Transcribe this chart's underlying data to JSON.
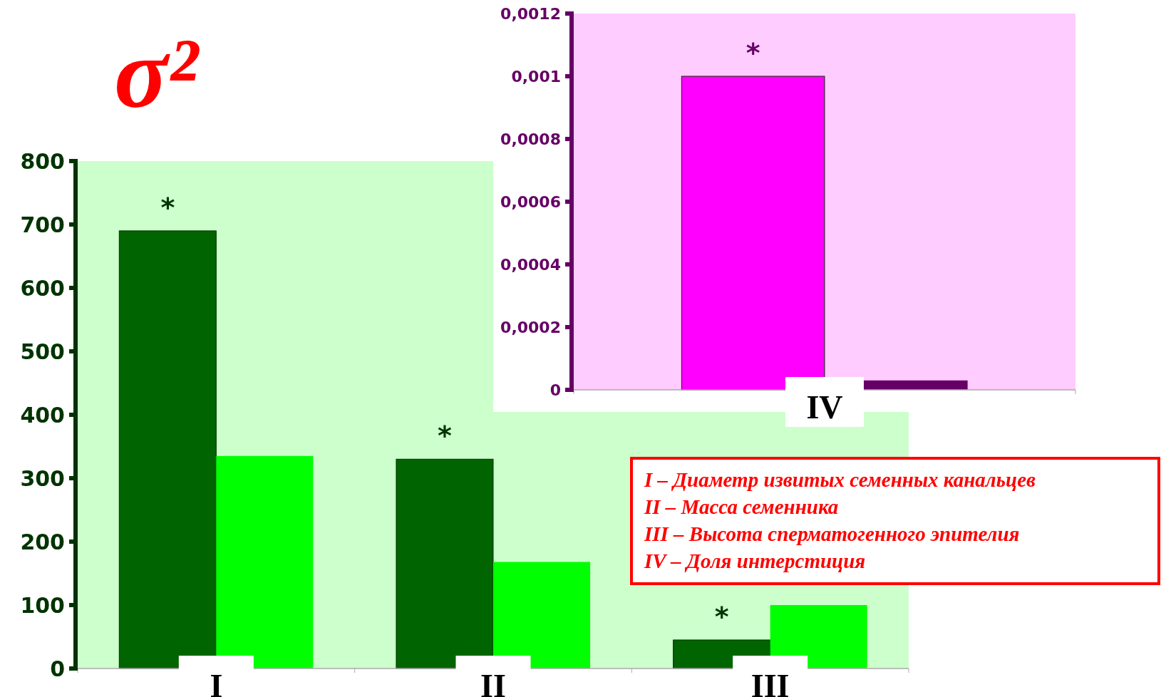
{
  "chart_data": [
    {
      "type": "bar",
      "title": "σ²",
      "categories": [
        "I",
        "II",
        "III"
      ],
      "series": [
        {
          "color": "#006400",
          "values": [
            690,
            330,
            45
          ]
        },
        {
          "color": "#00ff00",
          "values": [
            335,
            168,
            100
          ]
        }
      ],
      "ylim": [
        0,
        800
      ],
      "yticks": [
        0,
        100,
        200,
        300,
        400,
        500,
        600,
        700,
        800
      ],
      "grid": false,
      "annotations": [
        "*",
        "*",
        "*",
        "I – Диаметр извитых семенных канальцев",
        "II – Масса семенника",
        "III – Высота сперматогенного эпителия",
        "IV – Доля интерстиция"
      ]
    },
    {
      "type": "bar",
      "categories": [
        "IV"
      ],
      "series": [
        {
          "color": "#ff00ff",
          "values": [
            0.001
          ]
        },
        {
          "color": "#660066",
          "values": [
            3e-05
          ]
        }
      ],
      "ylim": [
        0,
        0.0012
      ],
      "yticks": [
        0,
        {
          "value": 0.0002,
          "label": "0,0002"
        },
        {
          "value": 0.0004,
          "label": "0,0004"
        },
        {
          "value": 0.0006,
          "label": "0,0006"
        },
        {
          "value": 0.0008,
          "label": "0,0008"
        },
        {
          "value": 0.001,
          "label": "0,001"
        },
        {
          "value": 0.0012,
          "label": "0,0012"
        }
      ],
      "grid": false,
      "annotations": [
        "*"
      ]
    }
  ]
}
